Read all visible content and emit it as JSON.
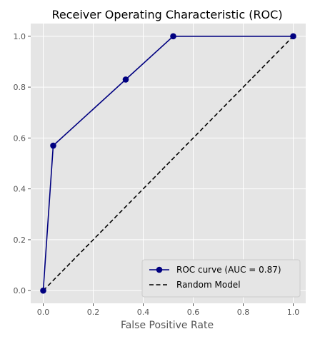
{
  "chart_data": {
    "type": "line",
    "title": "Receiver Operating Characteristic (ROC)",
    "xlabel": "False Positive Rate",
    "ylabel": "",
    "xlim": [
      -0.05,
      1.05
    ],
    "ylim": [
      -0.05,
      1.05
    ],
    "xticks": [
      0.0,
      0.2,
      0.4,
      0.6,
      0.8,
      1.0
    ],
    "yticks": [
      0.0,
      0.2,
      0.4,
      0.6,
      0.8,
      1.0
    ],
    "xtick_labels": [
      "0.0",
      "0.2",
      "0.4",
      "0.6",
      "0.8",
      "1.0"
    ],
    "ytick_labels": [
      "0.0",
      "0.2",
      "0.4",
      "0.6",
      "0.8",
      "1.0"
    ],
    "grid": true,
    "legend_position": "bottom-right",
    "series": [
      {
        "name": "ROC curve (AUC = 0.87)",
        "style": "solid-with-markers",
        "color": "#000080",
        "x": [
          0.0,
          0.04,
          0.33,
          0.52,
          1.0
        ],
        "y": [
          0.0,
          0.57,
          0.83,
          1.0,
          1.0
        ]
      },
      {
        "name": "Random Model",
        "style": "dashed",
        "color": "#000000",
        "x": [
          0.0,
          1.0
        ],
        "y": [
          0.0,
          1.0
        ]
      }
    ]
  },
  "colors": {
    "plot_background": "#e5e5e5",
    "grid": "#ffffff",
    "legend_background": "#e5e5e5",
    "legend_border": "#cccccc"
  }
}
